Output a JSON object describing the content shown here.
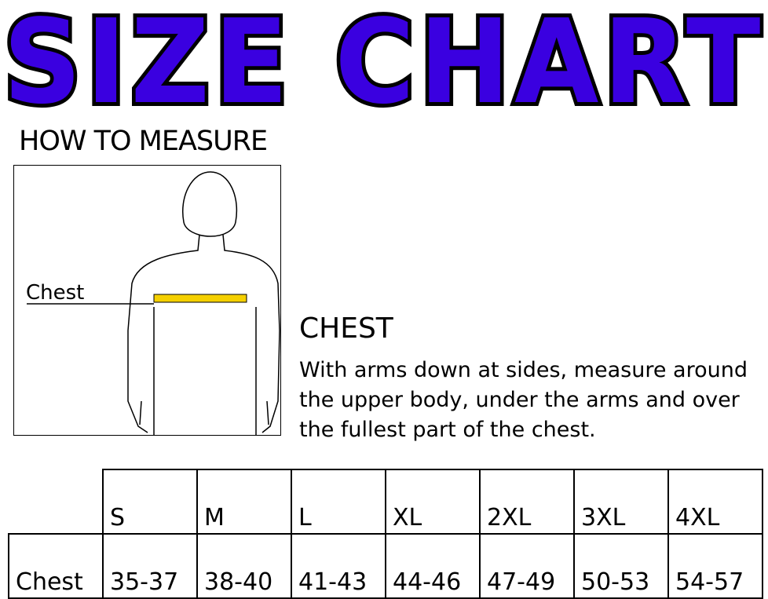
{
  "title": "SIZE CHART",
  "title_color": "#3a00e0",
  "how_to": "HOW TO MEASURE",
  "figure": {
    "label": "Chest",
    "tape_color": "#f5d000"
  },
  "chest": {
    "heading": "CHEST",
    "description": "With arms down at sides, measure around the upper body, under the arms and over the fullest part of the chest."
  },
  "table": {
    "sizes": [
      "S",
      "M",
      "L",
      "XL",
      "2XL",
      "3XL",
      "4XL"
    ],
    "row_label": "Chest",
    "values": [
      "35-37",
      "38-40",
      "41-43",
      "44-46",
      "47-49",
      "50-53",
      "54-57"
    ]
  }
}
